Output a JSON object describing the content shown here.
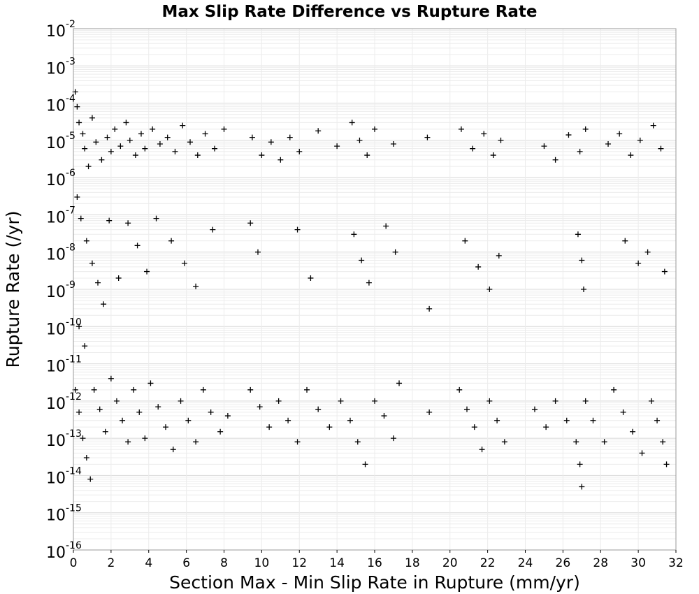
{
  "chart_data": {
    "type": "scatter",
    "title": "Max Slip Rate Difference vs Rupture Rate",
    "xlabel": "Section Max - Min Slip Rate in Rupture (mm/yr)",
    "ylabel": "Rupture Rate (/yr)",
    "xlim": [
      0,
      32
    ],
    "ylim": [
      1e-16,
      0.01
    ],
    "yscale": "log",
    "grid": true,
    "marker": "+",
    "x_ticks": [
      "0",
      "2",
      "4",
      "6",
      "8",
      "10",
      "12",
      "14",
      "16",
      "18",
      "20",
      "22",
      "24",
      "26",
      "28",
      "30",
      "32"
    ],
    "y_ticks": [
      {
        "base": "10",
        "exp": "-2"
      },
      {
        "base": "10",
        "exp": "-3"
      },
      {
        "base": "10",
        "exp": "-4"
      },
      {
        "base": "10",
        "exp": "-5"
      },
      {
        "base": "10",
        "exp": "-6"
      },
      {
        "base": "10",
        "exp": "-7"
      },
      {
        "base": "10",
        "exp": "-8"
      },
      {
        "base": "10",
        "exp": "-9"
      },
      {
        "base": "10",
        "exp": "-10"
      },
      {
        "base": "10",
        "exp": "-11"
      },
      {
        "base": "10",
        "exp": "-12"
      },
      {
        "base": "10",
        "exp": "-13"
      },
      {
        "base": "10",
        "exp": "-14"
      },
      {
        "base": "10",
        "exp": "-15"
      },
      {
        "base": "10",
        "exp": "-16"
      }
    ],
    "points": [
      [
        0.1,
        0.0002
      ],
      [
        0.2,
        8e-05
      ],
      [
        0.3,
        3e-05
      ],
      [
        0.5,
        1.5e-05
      ],
      [
        0.6,
        6e-06
      ],
      [
        0.8,
        2e-06
      ],
      [
        1.0,
        4e-05
      ],
      [
        1.2,
        9e-06
      ],
      [
        1.5,
        3e-06
      ],
      [
        1.8,
        1.2e-05
      ],
      [
        2.0,
        5e-06
      ],
      [
        2.2,
        2e-05
      ],
      [
        2.5,
        7e-06
      ],
      [
        2.8,
        3e-05
      ],
      [
        3.0,
        1e-05
      ],
      [
        3.3,
        4e-06
      ],
      [
        3.6,
        1.5e-05
      ],
      [
        3.8,
        6e-06
      ],
      [
        4.2,
        2e-05
      ],
      [
        4.6,
        8e-06
      ],
      [
        5.0,
        1.2e-05
      ],
      [
        5.4,
        5e-06
      ],
      [
        5.8,
        2.5e-05
      ],
      [
        6.2,
        9e-06
      ],
      [
        6.6,
        4e-06
      ],
      [
        7.0,
        1.5e-05
      ],
      [
        7.5,
        6e-06
      ],
      [
        8.0,
        2e-05
      ],
      [
        9.5,
        1.2e-05
      ],
      [
        10.0,
        4e-06
      ],
      [
        10.5,
        9e-06
      ],
      [
        11.0,
        3e-06
      ],
      [
        11.5,
        1.2e-05
      ],
      [
        12.0,
        5e-06
      ],
      [
        13.0,
        1.8e-05
      ],
      [
        14.0,
        7e-06
      ],
      [
        14.8,
        3e-05
      ],
      [
        15.2,
        1e-05
      ],
      [
        15.6,
        4e-06
      ],
      [
        16.0,
        2e-05
      ],
      [
        17.0,
        8e-06
      ],
      [
        18.8,
        1.2e-05
      ],
      [
        20.6,
        2e-05
      ],
      [
        21.2,
        6e-06
      ],
      [
        21.8,
        1.5e-05
      ],
      [
        22.3,
        4e-06
      ],
      [
        22.7,
        1e-05
      ],
      [
        25.0,
        7e-06
      ],
      [
        25.6,
        3e-06
      ],
      [
        26.3,
        1.4e-05
      ],
      [
        26.9,
        5e-06
      ],
      [
        27.2,
        2e-05
      ],
      [
        28.4,
        8e-06
      ],
      [
        29.0,
        1.5e-05
      ],
      [
        29.6,
        4e-06
      ],
      [
        30.1,
        1e-05
      ],
      [
        30.8,
        2.5e-05
      ],
      [
        31.2,
        6e-06
      ],
      [
        0.2,
        3e-07
      ],
      [
        0.4,
        8e-08
      ],
      [
        0.7,
        2e-08
      ],
      [
        1.0,
        5e-09
      ],
      [
        1.3,
        1.5e-09
      ],
      [
        1.6,
        4e-10
      ],
      [
        0.3,
        1e-10
      ],
      [
        0.6,
        3e-11
      ],
      [
        1.9,
        7e-08
      ],
      [
        2.4,
        2e-09
      ],
      [
        2.9,
        6e-08
      ],
      [
        3.4,
        1.5e-08
      ],
      [
        3.9,
        3e-09
      ],
      [
        4.4,
        8e-08
      ],
      [
        5.2,
        2e-08
      ],
      [
        5.9,
        5e-09
      ],
      [
        6.5,
        1.2e-09
      ],
      [
        7.4,
        4e-08
      ],
      [
        9.4,
        6e-08
      ],
      [
        9.8,
        1e-08
      ],
      [
        11.9,
        4e-08
      ],
      [
        12.6,
        2e-09
      ],
      [
        14.9,
        3e-08
      ],
      [
        15.3,
        6e-09
      ],
      [
        15.7,
        1.5e-09
      ],
      [
        16.6,
        5e-08
      ],
      [
        17.1,
        1e-08
      ],
      [
        18.9,
        3e-10
      ],
      [
        20.8,
        2e-08
      ],
      [
        21.5,
        4e-09
      ],
      [
        22.1,
        1e-09
      ],
      [
        22.6,
        8e-09
      ],
      [
        26.8,
        3e-08
      ],
      [
        27.0,
        6e-09
      ],
      [
        27.1,
        1e-09
      ],
      [
        29.3,
        2e-08
      ],
      [
        30.0,
        5e-09
      ],
      [
        30.5,
        1e-08
      ],
      [
        31.4,
        3e-09
      ],
      [
        0.1,
        2e-12
      ],
      [
        0.3,
        5e-13
      ],
      [
        0.5,
        1e-13
      ],
      [
        0.7,
        3e-14
      ],
      [
        0.9,
        8e-15
      ],
      [
        1.1,
        2e-12
      ],
      [
        1.4,
        6e-13
      ],
      [
        1.7,
        1.5e-13
      ],
      [
        2.0,
        4e-12
      ],
      [
        2.3,
        1e-12
      ],
      [
        2.6,
        3e-13
      ],
      [
        2.9,
        8e-14
      ],
      [
        3.2,
        2e-12
      ],
      [
        3.5,
        5e-13
      ],
      [
        3.8,
        1e-13
      ],
      [
        4.1,
        3e-12
      ],
      [
        4.5,
        7e-13
      ],
      [
        4.9,
        2e-13
      ],
      [
        5.3,
        5e-14
      ],
      [
        5.7,
        1e-12
      ],
      [
        6.1,
        3e-13
      ],
      [
        6.5,
        8e-14
      ],
      [
        6.9,
        2e-12
      ],
      [
        7.3,
        5e-13
      ],
      [
        7.8,
        1.5e-13
      ],
      [
        8.2,
        4e-13
      ],
      [
        9.4,
        2e-12
      ],
      [
        9.9,
        7e-13
      ],
      [
        10.4,
        2e-13
      ],
      [
        10.9,
        1e-12
      ],
      [
        11.4,
        3e-13
      ],
      [
        11.9,
        8e-14
      ],
      [
        12.4,
        2e-12
      ],
      [
        13.0,
        6e-13
      ],
      [
        13.6,
        2e-13
      ],
      [
        14.2,
        1e-12
      ],
      [
        14.7,
        3e-13
      ],
      [
        15.1,
        8e-14
      ],
      [
        15.5,
        2e-14
      ],
      [
        16.0,
        1e-12
      ],
      [
        16.5,
        4e-13
      ],
      [
        17.0,
        1e-13
      ],
      [
        17.3,
        3e-12
      ],
      [
        18.9,
        5e-13
      ],
      [
        20.5,
        2e-12
      ],
      [
        20.9,
        6e-13
      ],
      [
        21.3,
        2e-13
      ],
      [
        21.7,
        5e-14
      ],
      [
        22.1,
        1e-12
      ],
      [
        22.5,
        3e-13
      ],
      [
        22.9,
        8e-14
      ],
      [
        24.5,
        6e-13
      ],
      [
        25.1,
        2e-13
      ],
      [
        25.6,
        1e-12
      ],
      [
        26.2,
        3e-13
      ],
      [
        26.7,
        8e-14
      ],
      [
        26.9,
        2e-14
      ],
      [
        27.0,
        5e-15
      ],
      [
        27.2,
        1e-12
      ],
      [
        27.6,
        3e-13
      ],
      [
        28.2,
        8e-14
      ],
      [
        28.7,
        2e-12
      ],
      [
        29.2,
        5e-13
      ],
      [
        29.7,
        1.5e-13
      ],
      [
        30.2,
        4e-14
      ],
      [
        30.7,
        1e-12
      ],
      [
        31.0,
        3e-13
      ],
      [
        31.3,
        8e-14
      ],
      [
        31.5,
        2e-14
      ]
    ]
  }
}
